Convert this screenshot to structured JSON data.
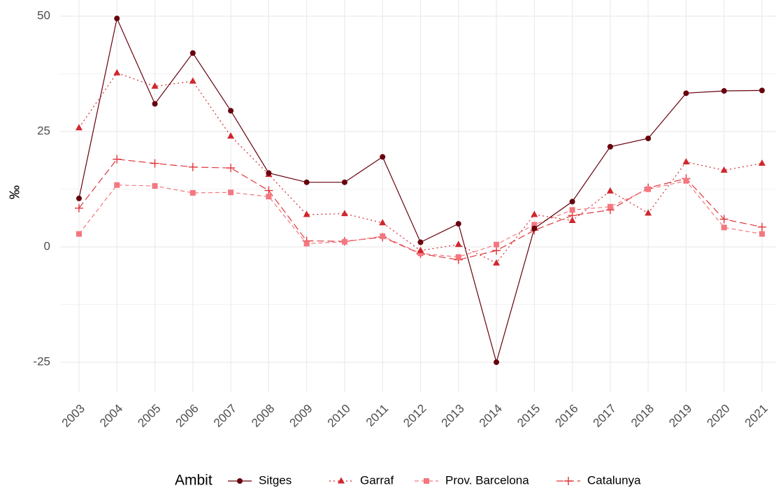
{
  "chart_data": {
    "type": "line",
    "y_label": "‰",
    "legend_title": "Ambit",
    "legend": "bottom",
    "grid": true,
    "categories": [
      "2003",
      "2004",
      "2005",
      "2006",
      "2007",
      "2008",
      "2009",
      "2010",
      "2011",
      "2012",
      "2013",
      "2014",
      "2015",
      "2016",
      "2017",
      "2018",
      "2019",
      "2020",
      "2021"
    ],
    "ylim": [
      -31.5,
      53.5
    ],
    "yticks": [
      -25,
      0,
      25,
      50
    ],
    "series": [
      {
        "name": "Sitges",
        "color": "#67000d",
        "marker": "circle",
        "dash": "solid",
        "values": [
          10.5,
          49.5,
          31,
          42,
          29.5,
          16,
          14,
          14,
          19.5,
          1,
          5,
          -25,
          4,
          9.8,
          21.7,
          23.5,
          33.3,
          33.8,
          33.9
        ]
      },
      {
        "name": "Garraf",
        "color": "#d0262c",
        "marker": "triangle",
        "dash": "dotted",
        "values": [
          25.8,
          37.7,
          34.8,
          35.9,
          24,
          15.7,
          7,
          7.2,
          5.2,
          -0.8,
          0.5,
          -3.5,
          7,
          5.7,
          12.1,
          7.3,
          18.4,
          16.6,
          18.1
        ]
      },
      {
        "name": "Prov. Barcelona",
        "color": "#f4777f",
        "marker": "square",
        "dash": "dashed",
        "values": [
          2.8,
          13.4,
          13.2,
          11.7,
          11.8,
          10.9,
          0.7,
          1.1,
          2.3,
          -1.4,
          -2.2,
          0.5,
          4.8,
          8,
          8.7,
          12.5,
          14.3,
          4.2,
          2.8
        ]
      },
      {
        "name": "Catalunya",
        "color": "#e0353b",
        "marker": "plus",
        "dash": "longdash",
        "values": [
          8.4,
          19,
          18.1,
          17.3,
          17.1,
          12.2,
          1.3,
          1.2,
          2.1,
          -1.5,
          -2.8,
          -0.8,
          3.6,
          6.8,
          8,
          12.8,
          14.8,
          6,
          4.3
        ]
      }
    ]
  }
}
